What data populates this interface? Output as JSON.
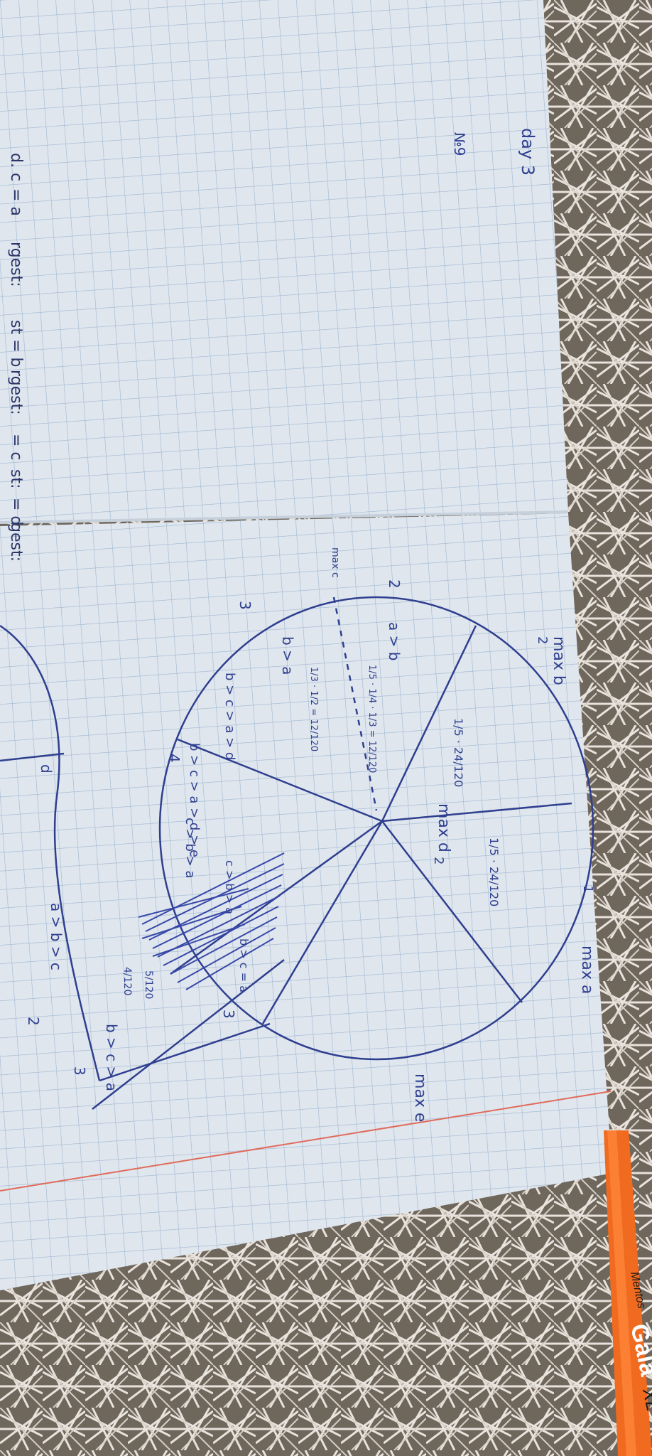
{
  "colors": {
    "paper": "#dfe6ee",
    "grid": "#9fb6d0",
    "ink": "#2f3f8f",
    "margin_line": "#e06a5a",
    "pen": "#f06a1f",
    "table": "#6f665c"
  },
  "top_page": {
    "day_label": "day 3",
    "number_label": "№9",
    "edge_notes": [
      "d. c",
      "= a",
      "rgest:",
      "st = b",
      "rgest:",
      "= c",
      "st:",
      "= d",
      "gest:"
    ]
  },
  "bottom_page": {
    "row_number": "2",
    "max_c": "max c",
    "row_three": "3",
    "row_four": "4",
    "max_b": "max b",
    "max_b_num": "2",
    "max_a": "max a",
    "max_a_num": "1",
    "max_d": "max d",
    "max_d_num": "2",
    "max_e": "max e",
    "ineq_ab": "a > b",
    "ineq_ba": "b > a",
    "frac_one_fifth_24": "1/5 · 24/120",
    "frac_one_fifth_24_b": "1/5 · 24/120",
    "frac_ab": "1/5 · 1/4 · 1/3 = 12/120",
    "frac_ba": "1/3 · 1/2 = 12/120",
    "chain_1": "b > c > a > d",
    "chain_2": "b > c > a > d > e",
    "chain_3": "c > b > a",
    "chain_4": "c > b > a",
    "chain_5": "b > c = a",
    "frac_4_120": "4/120",
    "frac_5_120": "5/120",
    "edge_ineq_1": "a > b > c",
    "edge_ineq_2": "b > c > a",
    "bottom_num_2": "2",
    "bottom_num_3": "3",
    "bottom_num_3b": "3",
    "left_mark": "d"
  },
  "pen": {
    "brand": "Mentos",
    "model": "Gala",
    "suffix": "XL"
  }
}
